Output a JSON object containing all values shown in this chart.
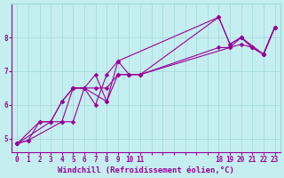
{
  "xlabel": "Windchill (Refroidissement éolien,°C)",
  "background_color": "#c5eef0",
  "line_color": "#990099",
  "markersize": 2.5,
  "linewidth": 0.8,
  "segments": [
    {
      "x": [
        0,
        1,
        2,
        3,
        4,
        5,
        6,
        7,
        8,
        9,
        10,
        11,
        18,
        19,
        20,
        21,
        22,
        23
      ],
      "y": [
        4.85,
        4.95,
        5.5,
        5.5,
        6.1,
        6.5,
        6.5,
        6.9,
        6.1,
        7.3,
        6.9,
        6.9,
        8.6,
        7.8,
        8.0,
        7.7,
        7.5,
        8.3
      ]
    },
    {
      "x": [
        0,
        3,
        4,
        5,
        7,
        8,
        9,
        10,
        11,
        18,
        19,
        20,
        21,
        22,
        23
      ],
      "y": [
        4.85,
        5.5,
        6.1,
        6.5,
        6.5,
        6.5,
        6.9,
        6.9,
        6.9,
        7.7,
        7.7,
        7.8,
        7.7,
        7.5,
        8.3
      ]
    },
    {
      "x": [
        0,
        2,
        3,
        4,
        5,
        6,
        7,
        8,
        9,
        18,
        19,
        20,
        22,
        23
      ],
      "y": [
        4.85,
        5.5,
        5.5,
        5.5,
        6.5,
        6.5,
        6.0,
        6.9,
        7.3,
        8.6,
        7.8,
        8.0,
        7.5,
        8.3
      ]
    },
    {
      "x": [
        0,
        1,
        4,
        5,
        6,
        8,
        9,
        10,
        11,
        19,
        20,
        21,
        22,
        23
      ],
      "y": [
        4.85,
        4.95,
        5.5,
        5.5,
        6.5,
        6.1,
        6.9,
        6.9,
        6.9,
        7.7,
        8.0,
        7.7,
        7.5,
        8.3
      ]
    }
  ],
  "xlim": [
    -0.5,
    23.5
  ],
  "ylim": [
    4.6,
    9.0
  ],
  "xtick_positions": [
    0,
    1,
    2,
    3,
    4,
    5,
    6,
    7,
    8,
    9,
    10,
    11,
    12,
    13,
    14,
    15,
    16,
    17,
    18,
    19,
    20,
    21,
    22,
    23
  ],
  "xtick_labels": [
    "0",
    "1",
    "2",
    "3",
    "4",
    "5",
    "6",
    "7",
    "8",
    "9",
    "10",
    "11",
    "",
    "",
    "",
    "",
    "",
    "",
    "18",
    "19",
    "20",
    "21",
    "22",
    "23"
  ],
  "yticks": [
    5,
    6,
    7,
    8
  ],
  "grid_color": "#a0d8d8",
  "xlabel_fontsize": 6.5,
  "tick_fontsize": 5.5,
  "tick_color": "#990099",
  "label_color": "#990099",
  "spine_color": "#990099"
}
